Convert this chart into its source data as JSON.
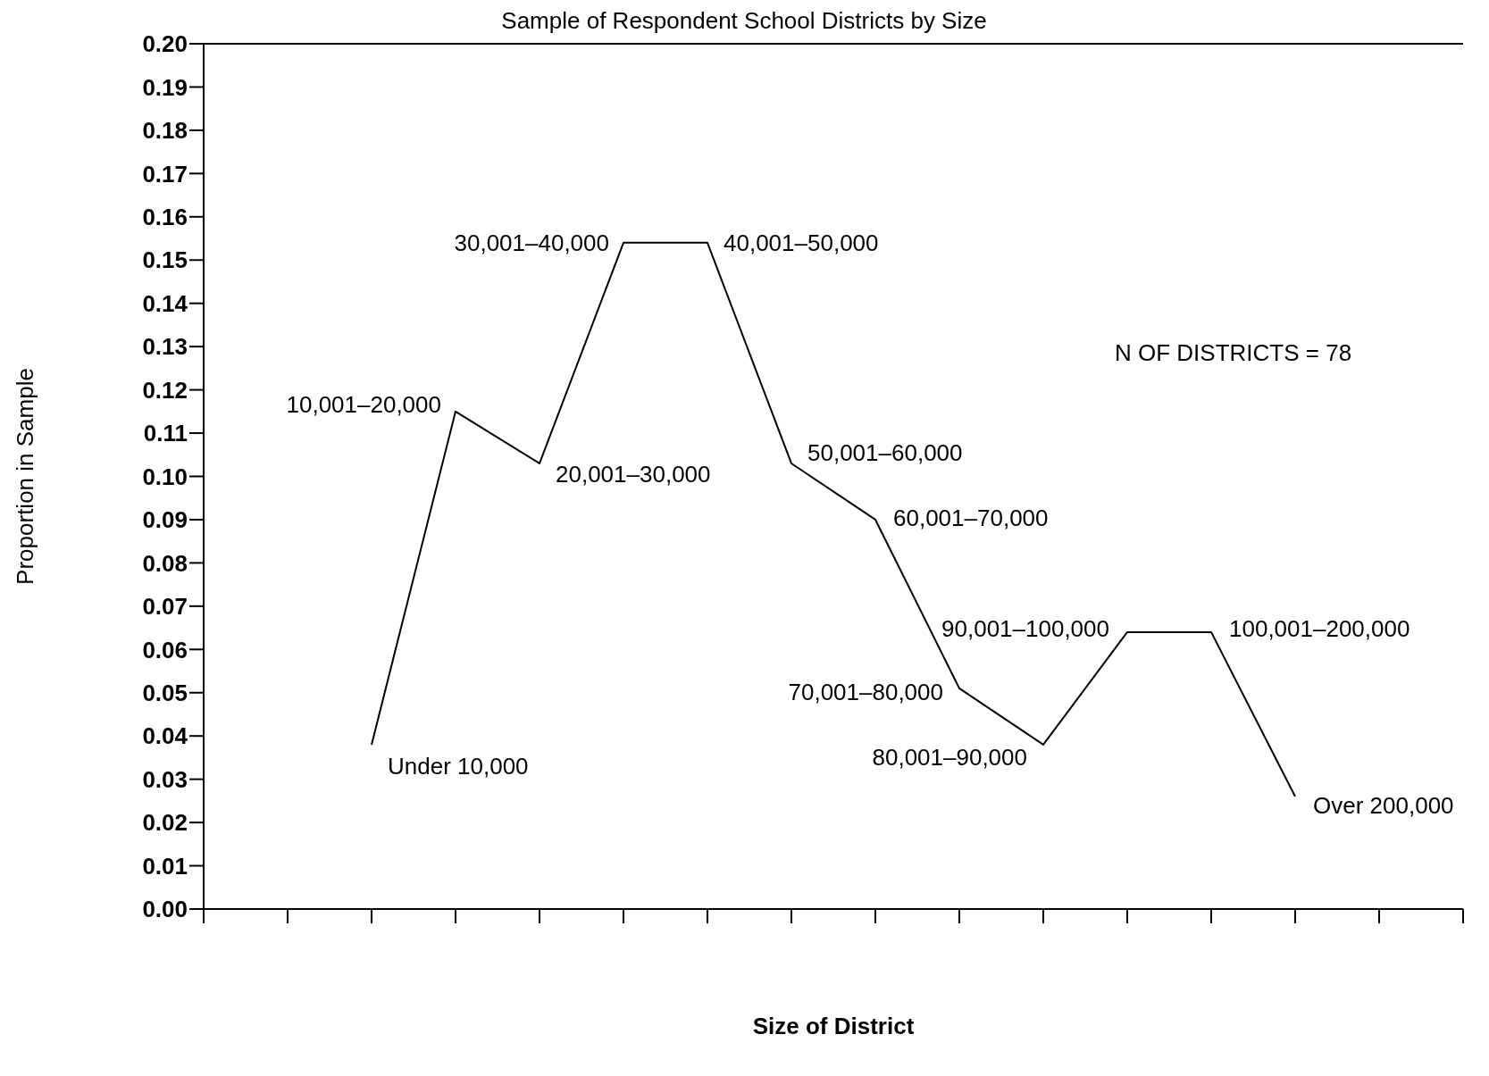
{
  "chart_data": {
    "type": "line",
    "title": "Sample of Respondent School Districts by Size",
    "xlabel": "Size of District",
    "ylabel": "Proportion in Sample",
    "categories": [
      null,
      null,
      null,
      null,
      null,
      null,
      null,
      null,
      null,
      null,
      null,
      null,
      null,
      null,
      null,
      null
    ],
    "values": [
      null,
      null,
      0.038,
      0.115,
      0.103,
      0.154,
      0.154,
      0.103,
      0.09,
      0.051,
      0.038,
      0.064,
      0.064,
      0.026,
      null,
      null
    ],
    "color": "#000000",
    "marker": "none",
    "line_style": "solid",
    "grid": false,
    "tick_labels": "y",
    "ylim": [
      0,
      0.2
    ],
    "yticks": [
      {
        "value": 0,
        "label": "0.00"
      },
      {
        "value": 0.01,
        "label": "0.01"
      },
      {
        "value": 0.02,
        "label": "0.02"
      },
      {
        "value": 0.03,
        "label": "0.03"
      },
      {
        "value": 0.04,
        "label": "0.04"
      },
      {
        "value": 0.05,
        "label": "0.05"
      },
      {
        "value": 0.06,
        "label": "0.06"
      },
      {
        "value": 0.07,
        "label": "0.07"
      },
      {
        "value": 0.08,
        "label": "0.08"
      },
      {
        "value": 0.09,
        "label": "0.09"
      },
      {
        "value": 0.1,
        "label": "0.10"
      },
      {
        "value": 0.11,
        "label": "0.11"
      },
      {
        "value": 0.12,
        "label": "0.12"
      },
      {
        "value": 0.13,
        "label": "0.13"
      },
      {
        "value": 0.14,
        "label": "0.14"
      },
      {
        "value": 0.15,
        "label": "0.15"
      },
      {
        "value": 0.16,
        "label": "0.16"
      },
      {
        "value": 0.17,
        "label": "0.17"
      },
      {
        "value": 0.18,
        "label": "0.18"
      },
      {
        "value": 0.19,
        "label": "0.19"
      },
      {
        "value": 0.2,
        "label": "0.20"
      }
    ],
    "annotations": [
      "Under 10,000",
      "10,001–20,000",
      "20,001–30,000",
      "30,001–40,000",
      "40,001–50,000",
      "50,001–60,000",
      "60,001–70,000",
      "70,001–80,000",
      "80,001–90,000",
      "90,001–100,000",
      "100,001–200,000",
      "Over 200,000",
      "N OF DISTRICTS = 78"
    ]
  }
}
